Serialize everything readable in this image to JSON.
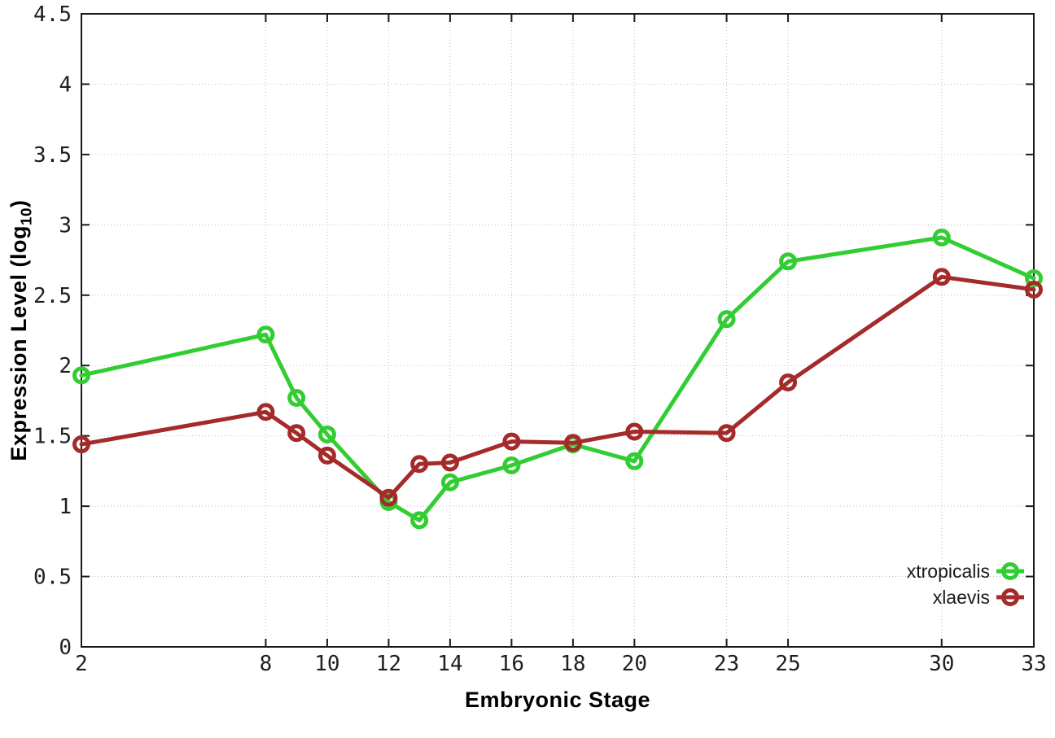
{
  "colors": {
    "background": "#ffffff",
    "border": "#1a1a1a",
    "grid": "#bdbdbd",
    "tick_text": "#1f1f1f",
    "legend_text": "#1a1a1a",
    "series_green": "#32CD32",
    "series_red": "#A52A2A"
  },
  "chart_data": {
    "type": "line",
    "title": "",
    "xlabel": "Embryonic Stage",
    "ylabel": {
      "prefix": "Expression Level (log",
      "subscript": "10",
      "suffix": ")"
    },
    "xlim": [
      2,
      33
    ],
    "ylim": [
      0,
      4.5
    ],
    "x_ticks": [
      2,
      8,
      10,
      12,
      14,
      16,
      18,
      20,
      23,
      25,
      30,
      33
    ],
    "y_ticks": [
      0,
      0.5,
      1,
      1.5,
      2,
      2.5,
      3,
      3.5,
      4,
      4.5
    ],
    "grid": true,
    "legend_position": "bottom-right",
    "marker_style": "open-circle",
    "x": [
      2,
      8,
      9,
      10,
      12,
      13,
      14,
      16,
      18,
      20,
      23,
      25,
      30,
      33
    ],
    "series": [
      {
        "name": "xtropicalis",
        "color": "#32CD32",
        "values": [
          1.93,
          2.22,
          1.77,
          1.51,
          1.03,
          0.9,
          1.17,
          1.29,
          1.44,
          1.32,
          2.33,
          2.74,
          2.91,
          2.62
        ]
      },
      {
        "name": "xlaevis",
        "color": "#A52A2A",
        "values": [
          1.44,
          1.67,
          1.52,
          1.36,
          1.06,
          1.3,
          1.31,
          1.46,
          1.45,
          1.53,
          1.52,
          1.88,
          2.63,
          2.54
        ]
      }
    ]
  }
}
